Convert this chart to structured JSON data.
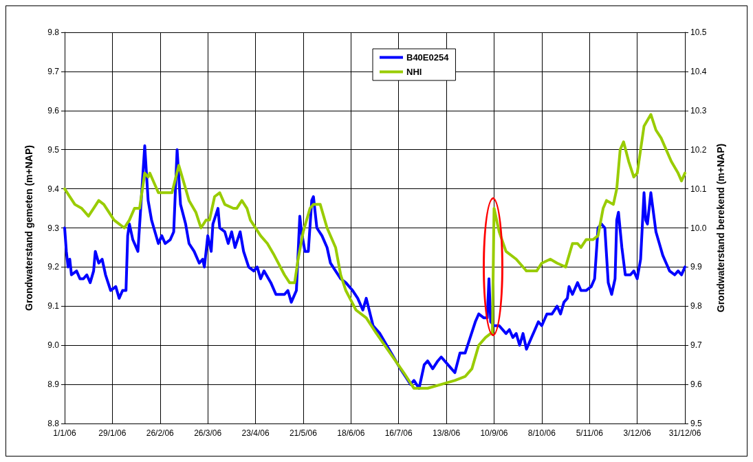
{
  "chart_data": {
    "type": "line",
    "ylabel": "Grondwaterstand gemeten (m+NAP)",
    "y2label": "Grondwaterstand berekend (m+NAP)",
    "xlim": [
      "2006-01-01",
      "2006-12-31"
    ],
    "xticks": [
      {
        "value": "2006-01-01",
        "label": "1/1/06"
      },
      {
        "value": "2006-01-29",
        "label": "29/1/06"
      },
      {
        "value": "2006-02-26",
        "label": "26/2/06"
      },
      {
        "value": "2006-03-26",
        "label": "26/3/06"
      },
      {
        "value": "2006-04-23",
        "label": "23/4/06"
      },
      {
        "value": "2006-05-21",
        "label": "21/5/06"
      },
      {
        "value": "2006-06-18",
        "label": "18/6/06"
      },
      {
        "value": "2006-07-16",
        "label": "16/7/06"
      },
      {
        "value": "2006-08-13",
        "label": "13/8/06"
      },
      {
        "value": "2006-09-10",
        "label": "10/9/06"
      },
      {
        "value": "2006-10-08",
        "label": "8/10/06"
      },
      {
        "value": "2006-11-05",
        "label": "5/11/06"
      },
      {
        "value": "2006-12-03",
        "label": "3/12/06"
      },
      {
        "value": "2006-12-31",
        "label": "31/12/06"
      }
    ],
    "ylim": [
      8.8,
      9.8
    ],
    "yticks": [
      {
        "value": 8.8,
        "label": "8.8"
      },
      {
        "value": 8.9,
        "label": "8.9"
      },
      {
        "value": 9.0,
        "label": "9.0"
      },
      {
        "value": 9.1,
        "label": "9.1"
      },
      {
        "value": 9.2,
        "label": "9.2"
      },
      {
        "value": 9.3,
        "label": "9.3"
      },
      {
        "value": 9.4,
        "label": "9.4"
      },
      {
        "value": 9.5,
        "label": "9.5"
      },
      {
        "value": 9.6,
        "label": "9.6"
      },
      {
        "value": 9.7,
        "label": "9.7"
      },
      {
        "value": 9.8,
        "label": "9.8"
      }
    ],
    "y2lim": [
      9.5,
      10.5
    ],
    "y2ticks": [
      {
        "value": 9.5,
        "label": "9.5"
      },
      {
        "value": 9.6,
        "label": "9.6"
      },
      {
        "value": 9.7,
        "label": "9.7"
      },
      {
        "value": 9.8,
        "label": "9.8"
      },
      {
        "value": 9.9,
        "label": "9.9"
      },
      {
        "value": 10.0,
        "label": "10.0"
      },
      {
        "value": 10.1,
        "label": "10.1"
      },
      {
        "value": 10.2,
        "label": "10.2"
      },
      {
        "value": 10.3,
        "label": "10.3"
      },
      {
        "value": 10.4,
        "label": "10.4"
      },
      {
        "value": 10.5,
        "label": "10.5"
      }
    ],
    "grid": true,
    "legend": "top",
    "marker": "none",
    "line_style": "solid",
    "series": [
      {
        "name": "B40E0254",
        "color": "#0000ff",
        "x": [
          "2006-01-01",
          "2006-01-02",
          "2006-01-03",
          "2006-01-04",
          "2006-01-05",
          "2006-01-08",
          "2006-01-10",
          "2006-01-12",
          "2006-01-14",
          "2006-01-16",
          "2006-01-18",
          "2006-01-19",
          "2006-01-21",
          "2006-01-23",
          "2006-01-25",
          "2006-01-28",
          "2006-01-31",
          "2006-02-02",
          "2006-02-04",
          "2006-02-06",
          "2006-02-07",
          "2006-02-08",
          "2006-02-10",
          "2006-02-13",
          "2006-02-17",
          "2006-02-19",
          "2006-02-21",
          "2006-02-23",
          "2006-02-25",
          "2006-02-27",
          "2006-03-01",
          "2006-03-04",
          "2006-03-06",
          "2006-03-08",
          "2006-03-10",
          "2006-03-13",
          "2006-03-15",
          "2006-03-18",
          "2006-03-21",
          "2006-03-23",
          "2006-03-24",
          "2006-03-26",
          "2006-03-28",
          "2006-03-29",
          "2006-04-01",
          "2006-04-02",
          "2006-04-05",
          "2006-04-07",
          "2006-04-09",
          "2006-04-11",
          "2006-04-14",
          "2006-04-16",
          "2006-04-19",
          "2006-04-22",
          "2006-04-24",
          "2006-04-26",
          "2006-04-28",
          "2006-05-02",
          "2006-05-05",
          "2006-05-10",
          "2006-05-12",
          "2006-05-14",
          "2006-05-17",
          "2006-05-19",
          "2006-05-20",
          "2006-05-22",
          "2006-05-24",
          "2006-05-26",
          "2006-05-27",
          "2006-05-29",
          "2006-06-01",
          "2006-06-04",
          "2006-06-06",
          "2006-06-09",
          "2006-06-12",
          "2006-06-15",
          "2006-06-19",
          "2006-06-22",
          "2006-06-25",
          "2006-06-27",
          "2006-07-01",
          "2006-07-05",
          "2006-07-09",
          "2006-07-13",
          "2006-07-17",
          "2006-07-20",
          "2006-07-23",
          "2006-07-25",
          "2006-07-28",
          "2006-07-31",
          "2006-08-02",
          "2006-08-05",
          "2006-08-08",
          "2006-08-10",
          "2006-08-14",
          "2006-08-16",
          "2006-08-18",
          "2006-08-21",
          "2006-08-24",
          "2006-08-27",
          "2006-08-30",
          "2006-09-01",
          "2006-09-04",
          "2006-09-06",
          "2006-09-07",
          "2006-09-08",
          "2006-09-10",
          "2006-09-13",
          "2006-09-17",
          "2006-09-19",
          "2006-09-21",
          "2006-09-23",
          "2006-09-25",
          "2006-09-27",
          "2006-09-29",
          "2006-10-02",
          "2006-10-04",
          "2006-10-06",
          "2006-10-08",
          "2006-10-09",
          "2006-10-11",
          "2006-10-14",
          "2006-10-17",
          "2006-10-19",
          "2006-10-21",
          "2006-10-23",
          "2006-10-24",
          "2006-10-26",
          "2006-10-29",
          "2006-10-31",
          "2006-11-03",
          "2006-11-06",
          "2006-11-08",
          "2006-11-10",
          "2006-11-12",
          "2006-11-14",
          "2006-11-16",
          "2006-11-18",
          "2006-11-20",
          "2006-11-21",
          "2006-11-22",
          "2006-11-24",
          "2006-11-26",
          "2006-11-29",
          "2006-12-01",
          "2006-12-03",
          "2006-12-05",
          "2006-12-07",
          "2006-12-08",
          "2006-12-09",
          "2006-12-11",
          "2006-12-14",
          "2006-12-16",
          "2006-12-18",
          "2006-12-20",
          "2006-12-22",
          "2006-12-25",
          "2006-12-27",
          "2006-12-29",
          "2006-12-31"
        ],
        "values": [
          9.3,
          9.24,
          9.2,
          9.22,
          9.18,
          9.19,
          9.17,
          9.17,
          9.18,
          9.16,
          9.19,
          9.24,
          9.21,
          9.22,
          9.18,
          9.14,
          9.15,
          9.12,
          9.14,
          9.14,
          9.28,
          9.31,
          9.27,
          9.24,
          9.51,
          9.37,
          9.32,
          9.29,
          9.26,
          9.28,
          9.26,
          9.27,
          9.29,
          9.5,
          9.36,
          9.31,
          9.26,
          9.24,
          9.21,
          9.22,
          9.2,
          9.28,
          9.24,
          9.31,
          9.35,
          9.3,
          9.29,
          9.26,
          9.29,
          9.25,
          9.29,
          9.24,
          9.2,
          9.19,
          9.2,
          9.17,
          9.19,
          9.16,
          9.13,
          9.13,
          9.14,
          9.11,
          9.14,
          9.33,
          9.29,
          9.24,
          9.24,
          9.37,
          9.38,
          9.3,
          9.28,
          9.25,
          9.21,
          9.19,
          9.17,
          9.16,
          9.14,
          9.12,
          9.09,
          9.12,
          9.05,
          9.03,
          9.0,
          8.97,
          8.94,
          8.92,
          8.9,
          8.91,
          8.89,
          8.95,
          8.96,
          8.94,
          8.96,
          8.97,
          8.95,
          8.94,
          8.93,
          8.98,
          8.98,
          9.02,
          9.06,
          9.08,
          9.07,
          9.07,
          9.17,
          9.06,
          9.05,
          9.05,
          9.03,
          9.04,
          9.02,
          9.03,
          9.0,
          9.03,
          8.99,
          9.02,
          9.04,
          9.06,
          9.05,
          9.06,
          9.08,
          9.08,
          9.1,
          9.08,
          9.11,
          9.12,
          9.15,
          9.13,
          9.16,
          9.14,
          9.14,
          9.15,
          9.17,
          9.3,
          9.31,
          9.3,
          9.16,
          9.13,
          9.17,
          9.32,
          9.34,
          9.25,
          9.18,
          9.18,
          9.19,
          9.17,
          9.22,
          9.39,
          9.32,
          9.31,
          9.39,
          9.29,
          9.26,
          9.23,
          9.21,
          9.19,
          9.18,
          9.19,
          9.18,
          9.2
        ]
      },
      {
        "name": "NHI",
        "color": "#99cc00",
        "axis": "y2",
        "x": [
          "2006-01-01",
          "2006-01-07",
          "2006-01-11",
          "2006-01-15",
          "2006-01-18",
          "2006-01-21",
          "2006-01-24",
          "2006-01-30",
          "2006-02-05",
          "2006-02-08",
          "2006-02-11",
          "2006-02-14",
          "2006-02-17",
          "2006-02-19",
          "2006-02-20",
          "2006-02-22",
          "2006-02-25",
          "2006-03-03",
          "2006-03-05",
          "2006-03-09",
          "2006-03-11",
          "2006-03-15",
          "2006-03-19",
          "2006-03-22",
          "2006-03-25",
          "2006-03-27",
          "2006-03-30",
          "2006-04-02",
          "2006-04-05",
          "2006-04-10",
          "2006-04-12",
          "2006-04-15",
          "2006-04-18",
          "2006-04-20",
          "2006-04-26",
          "2006-04-30",
          "2006-05-04",
          "2006-05-10",
          "2006-05-13",
          "2006-05-16",
          "2006-05-18",
          "2006-05-21",
          "2006-05-25",
          "2006-05-27",
          "2006-05-31",
          "2006-06-04",
          "2006-06-09",
          "2006-06-12",
          "2006-06-15",
          "2006-06-21",
          "2006-06-27",
          "2006-07-03",
          "2006-07-11",
          "2006-07-19",
          "2006-07-25",
          "2006-08-02",
          "2006-08-10",
          "2006-08-18",
          "2006-08-24",
          "2006-08-28",
          "2006-09-01",
          "2006-09-05",
          "2006-09-08",
          "2006-09-09",
          "2006-09-10",
          "2006-09-13",
          "2006-09-17",
          "2006-09-23",
          "2006-09-29",
          "2006-10-01",
          "2006-10-05",
          "2006-10-08",
          "2006-10-13",
          "2006-10-17",
          "2006-10-22",
          "2006-10-26",
          "2006-10-29",
          "2006-10-31",
          "2006-11-03",
          "2006-11-07",
          "2006-11-10",
          "2006-11-13",
          "2006-11-15",
          "2006-11-19",
          "2006-11-21",
          "2006-11-23",
          "2006-11-25",
          "2006-11-28",
          "2006-12-01",
          "2006-12-03",
          "2006-12-05",
          "2006-12-07",
          "2006-12-11",
          "2006-12-14",
          "2006-12-17",
          "2006-12-23",
          "2006-12-27",
          "2006-12-29",
          "2006-12-31"
        ],
        "values": [
          10.1,
          10.06,
          10.05,
          10.03,
          10.05,
          10.07,
          10.06,
          10.02,
          10.0,
          10.02,
          10.05,
          10.05,
          10.14,
          10.13,
          10.14,
          10.12,
          10.09,
          10.09,
          10.09,
          10.16,
          10.13,
          10.07,
          10.04,
          10.0,
          10.02,
          10.02,
          10.08,
          10.09,
          10.06,
          10.05,
          10.05,
          10.07,
          10.05,
          10.02,
          9.98,
          9.96,
          9.93,
          9.88,
          9.86,
          9.86,
          9.92,
          9.99,
          10.05,
          10.06,
          10.06,
          10.0,
          9.95,
          9.88,
          9.84,
          9.79,
          9.77,
          9.73,
          9.68,
          9.63,
          9.59,
          9.59,
          9.6,
          9.61,
          9.62,
          9.64,
          9.7,
          9.72,
          9.73,
          9.73,
          10.05,
          9.99,
          9.94,
          9.92,
          9.89,
          9.89,
          9.89,
          9.91,
          9.92,
          9.91,
          9.9,
          9.96,
          9.96,
          9.95,
          9.97,
          9.97,
          9.98,
          10.05,
          10.07,
          10.06,
          10.1,
          10.2,
          10.22,
          10.17,
          10.13,
          10.14,
          10.2,
          10.26,
          10.29,
          10.25,
          10.23,
          10.17,
          10.14,
          10.12,
          10.14
        ]
      }
    ]
  }
}
